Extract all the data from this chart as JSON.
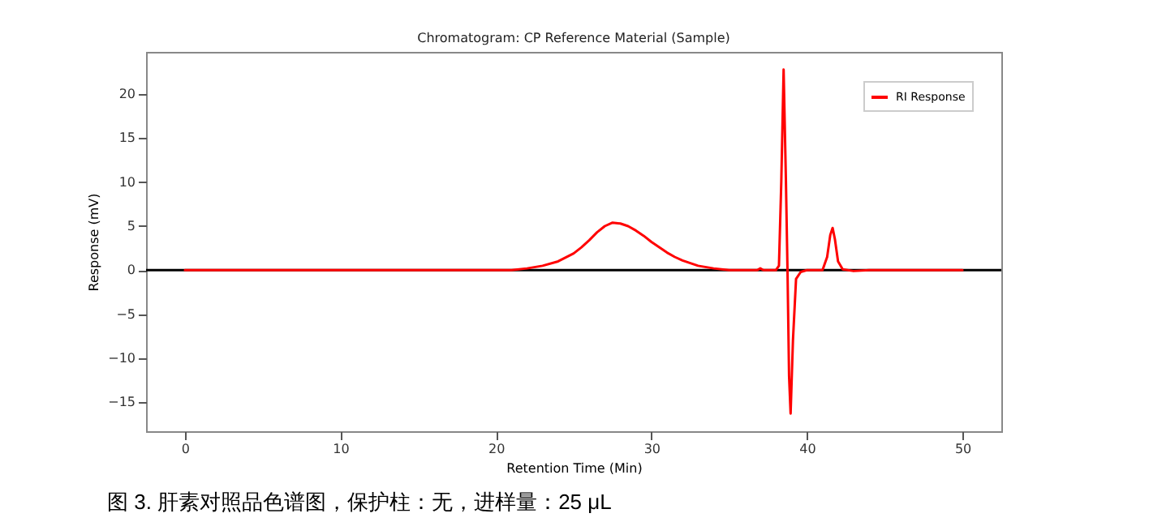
{
  "chart_data": {
    "type": "line",
    "title": "Chromatogram: CP Reference Material (Sample)",
    "xlabel": "Retention Time (Min)",
    "ylabel": "Response (mV)",
    "x": [
      0,
      5,
      10,
      15,
      20,
      21,
      22,
      23,
      24,
      25,
      25.5,
      26,
      26.5,
      27,
      27.5,
      28,
      28.5,
      29,
      29.5,
      30,
      30.5,
      31,
      31.5,
      32,
      33,
      34,
      35,
      36,
      36.8,
      37,
      37.2,
      38,
      38.2,
      38.35,
      38.5,
      38.65,
      38.75,
      38.85,
      38.95,
      39.1,
      39.3,
      39.6,
      40,
      41,
      41.3,
      41.5,
      41.65,
      41.8,
      42,
      42.3,
      43,
      44,
      46,
      50
    ],
    "series": [
      {
        "name": "RI Response",
        "color": "#ff0000",
        "values": [
          0,
          0,
          0,
          0,
          0,
          0,
          0.2,
          0.5,
          1.0,
          1.9,
          2.6,
          3.4,
          4.3,
          5.0,
          5.4,
          5.3,
          5.0,
          4.5,
          3.9,
          3.2,
          2.6,
          2.0,
          1.5,
          1.1,
          0.5,
          0.2,
          0,
          0,
          0,
          0.2,
          0,
          0,
          0.5,
          10,
          22.8,
          10,
          0,
          -12,
          -16.3,
          -8,
          -1.0,
          -0.2,
          0,
          0,
          1.5,
          4.0,
          4.8,
          3.5,
          1.0,
          0.1,
          -0.1,
          0,
          0,
          0
        ]
      }
    ],
    "xlim": [
      -2.5,
      52.5
    ],
    "xticks": [
      0,
      10,
      20,
      30,
      40,
      50
    ],
    "ylim": [
      -18.3,
      24.8
    ],
    "yticks": [
      -15,
      -10,
      -5,
      0,
      5,
      10,
      15,
      20
    ],
    "ref_lines": [
      {
        "axis": "y",
        "value": 0,
        "color": "#000000"
      }
    ],
    "grid": false,
    "legend": "top right",
    "marker": "none",
    "line_style": "solid",
    "annotations": [
      "图 3. 肝素对照品色谱图，保护柱：无，进样量：25 μL"
    ]
  }
}
